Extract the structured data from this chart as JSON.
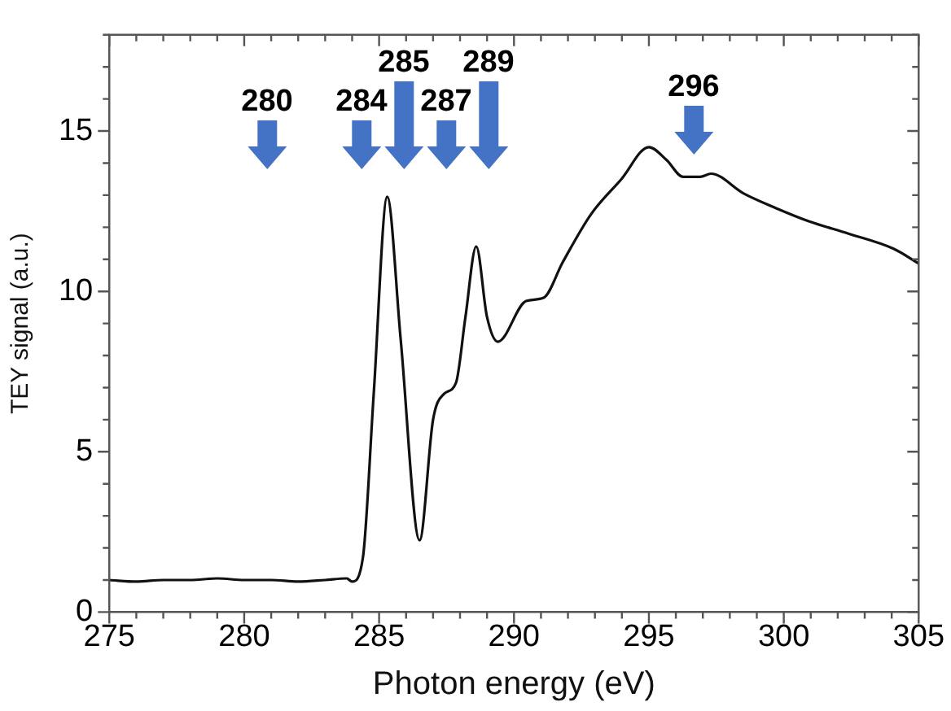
{
  "chart_data": {
    "type": "line",
    "xlabel": "Photon energy (eV)",
    "ylabel": "TEY signal (a.u.)",
    "xlim": [
      275,
      305
    ],
    "ylim": [
      0,
      18
    ],
    "xticks": [
      275,
      {
        "value": 276,
        "label": null
      },
      {
        "value": 277,
        "label": null
      },
      {
        "value": 278,
        "label": null
      },
      {
        "value": 279,
        "label": null
      },
      280,
      {
        "value": 281,
        "label": null
      },
      {
        "value": 282,
        "label": null
      },
      {
        "value": 283,
        "label": null
      },
      {
        "value": 284,
        "label": null
      },
      285,
      {
        "value": 286,
        "label": null
      },
      {
        "value": 287,
        "label": null
      },
      {
        "value": 288,
        "label": null
      },
      {
        "value": 289,
        "label": null
      },
      290,
      {
        "value": 291,
        "label": null
      },
      {
        "value": 292,
        "label": null
      },
      {
        "value": 293,
        "label": null
      },
      {
        "value": 294,
        "label": null
      },
      295,
      {
        "value": 296,
        "label": null
      },
      {
        "value": 297,
        "label": null
      },
      {
        "value": 298,
        "label": null
      },
      {
        "value": 299,
        "label": null
      },
      300,
      {
        "value": 301,
        "label": null
      },
      {
        "value": 302,
        "label": null
      },
      {
        "value": 303,
        "label": null
      },
      {
        "value": 304,
        "label": null
      },
      305
    ],
    "yticks": [
      0,
      {
        "value": 1,
        "label": null
      },
      {
        "value": 2,
        "label": null
      },
      {
        "value": 3,
        "label": null
      },
      {
        "value": 4,
        "label": null
      },
      5,
      {
        "value": 6,
        "label": null
      },
      {
        "value": 7,
        "label": null
      },
      {
        "value": 8,
        "label": null
      },
      {
        "value": 9,
        "label": null
      },
      10,
      {
        "value": 11,
        "label": null
      },
      {
        "value": 12,
        "label": null
      },
      {
        "value": 13,
        "label": null
      },
      {
        "value": 14,
        "label": null
      },
      15,
      {
        "value": 16,
        "label": null
      },
      {
        "value": 17,
        "label": null
      },
      {
        "value": 18,
        "label": null
      }
    ],
    "grid": false,
    "legend": false,
    "marker": "none",
    "line_style": "solid",
    "series": [
      {
        "color": "#111111",
        "x": [
          275,
          276,
          277,
          278,
          279,
          280,
          281,
          282,
          283,
          283.8,
          284.0,
          284.4,
          284.8,
          285.3,
          285.8,
          286.5,
          287.0,
          287.4,
          287.85,
          288.2,
          288.6,
          289.0,
          289.4,
          290.45,
          291.1,
          291.8,
          292.85,
          293.98,
          295.0,
          295.65,
          296.27,
          296.9,
          297.3,
          298.5,
          299.7,
          300.95,
          302.4,
          304.07,
          305
        ],
        "values": [
          1.0,
          0.95,
          1.0,
          1.0,
          1.05,
          1.0,
          1.0,
          0.95,
          1.0,
          1.05,
          0.95,
          1.7,
          6.8,
          12.95,
          8.5,
          2.24,
          6.0,
          6.8,
          7.15,
          9.2,
          11.4,
          9.2,
          8.43,
          9.7,
          9.8,
          10.9,
          12.4,
          13.5,
          14.5,
          14.1,
          13.57,
          13.57,
          13.67,
          13.06,
          12.6,
          12.18,
          11.8,
          11.33,
          10.87
        ]
      }
    ],
    "annotations": [
      "280",
      "284",
      "285",
      "287",
      "289",
      "296"
    ]
  }
}
